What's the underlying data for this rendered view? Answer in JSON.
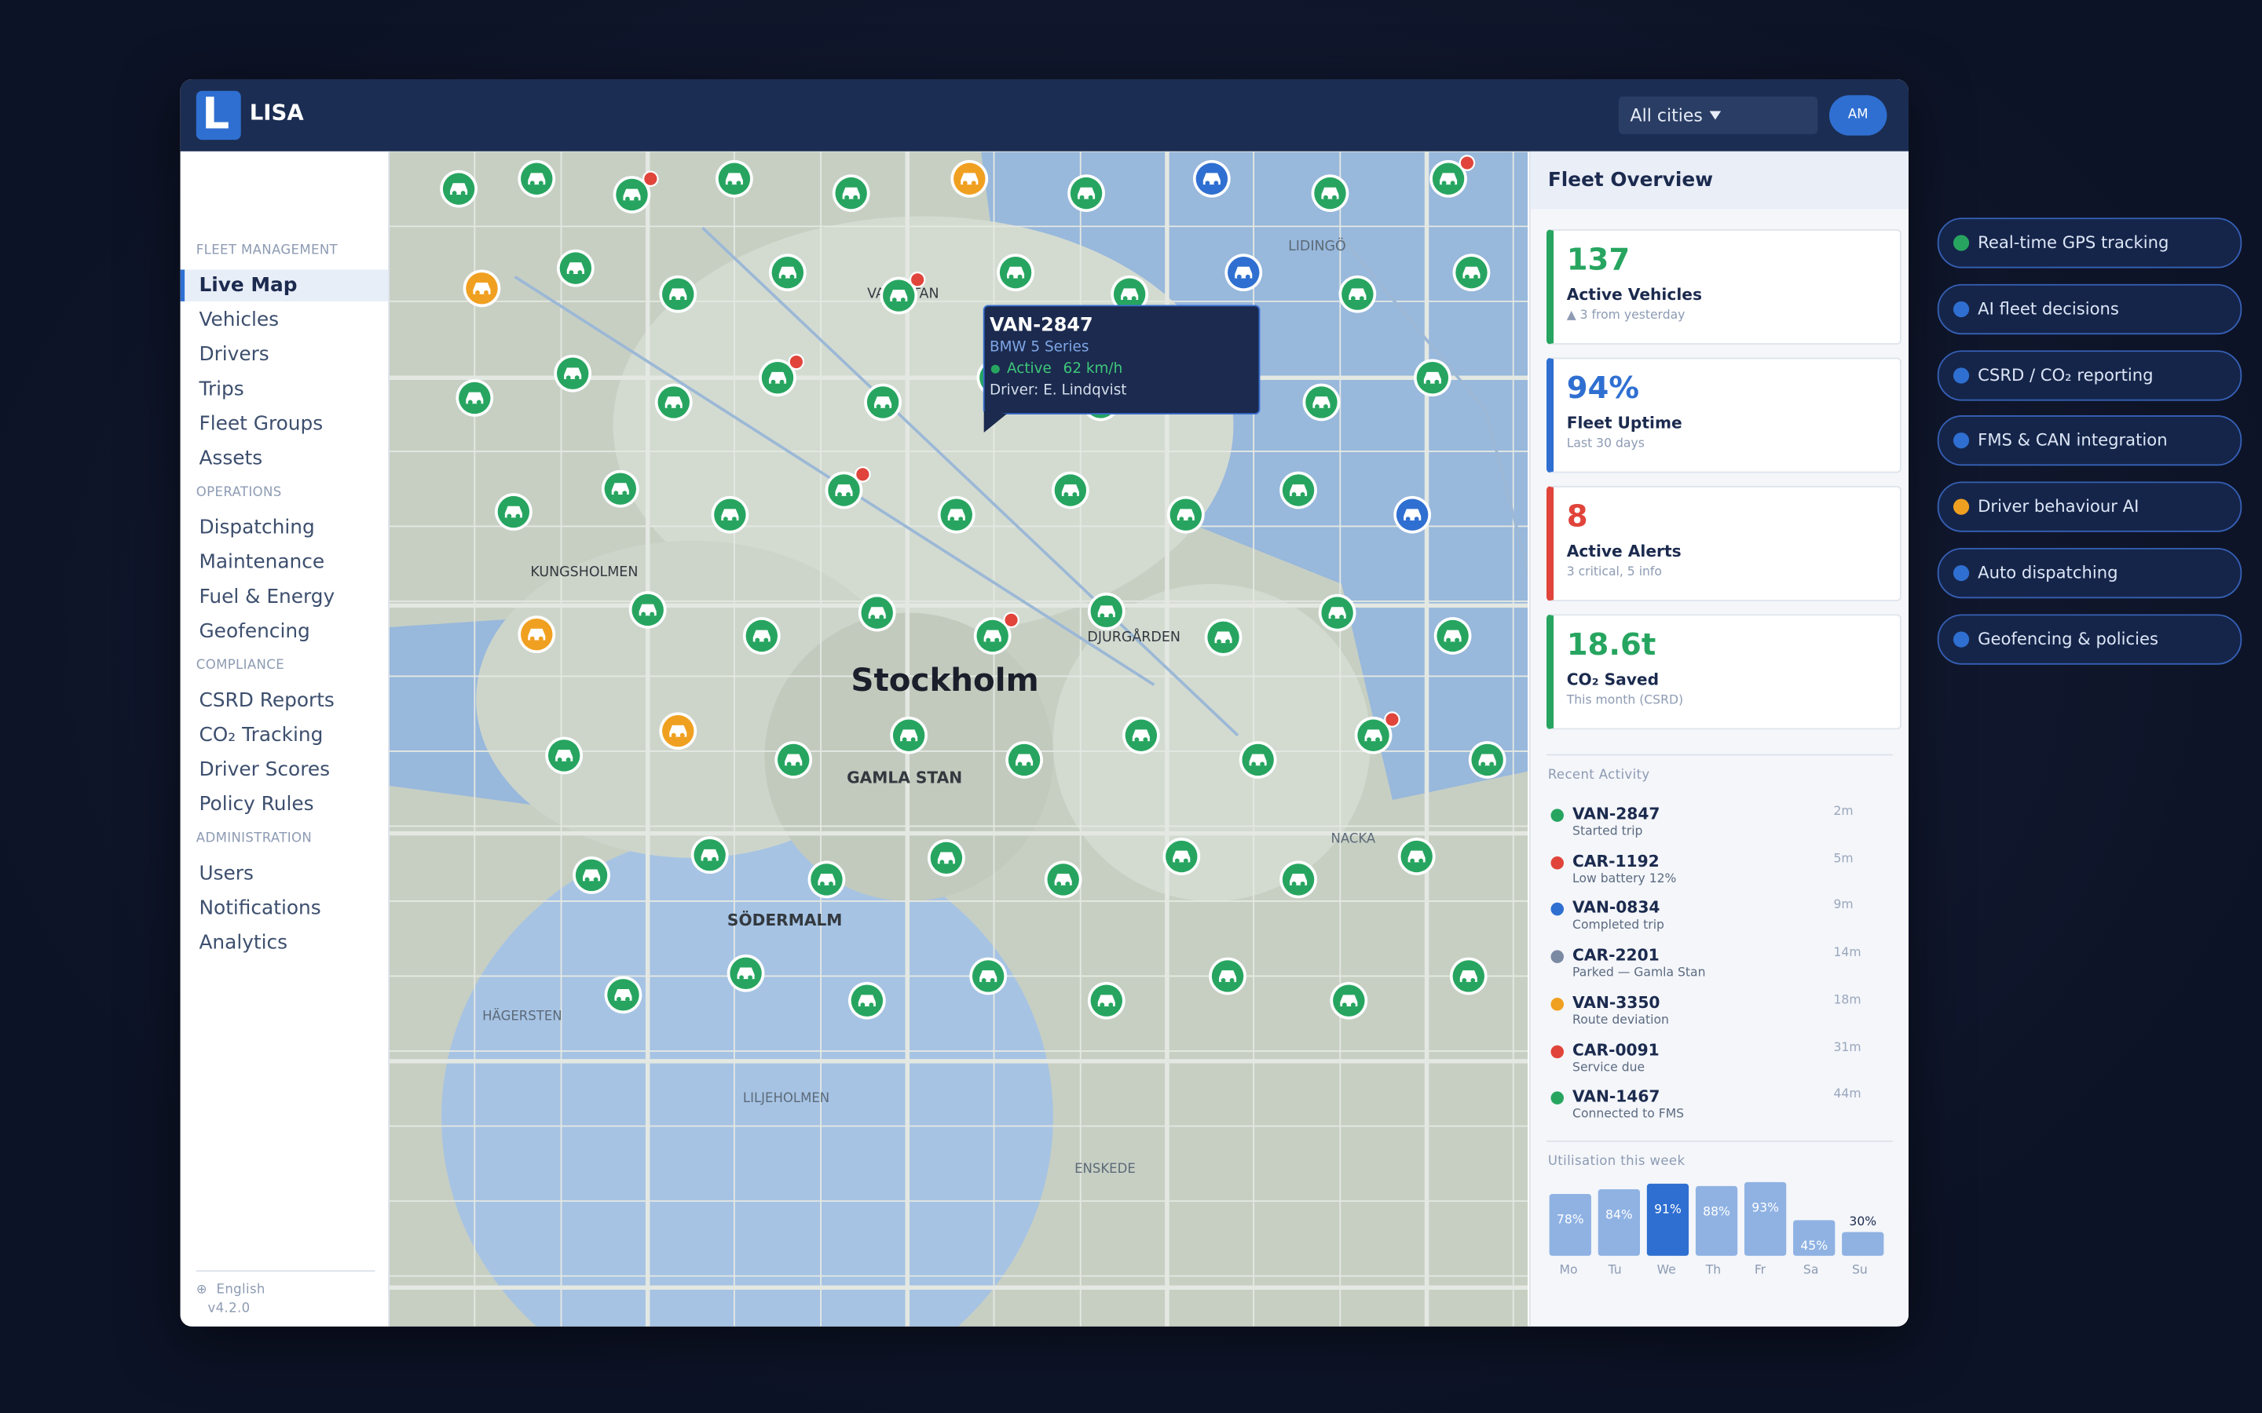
{
  "header": {
    "logo": "L",
    "title": "LISA",
    "city_select": "All cities",
    "avatar": "AM"
  },
  "sidebar": {
    "sections": [
      {
        "heading": "FLEET MANAGEMENT",
        "items": [
          "Live Map",
          "Vehicles",
          "Drivers",
          "Trips",
          "Fleet Groups",
          "Assets"
        ]
      },
      {
        "heading": "OPERATIONS",
        "items": [
          "Dispatching",
          "Maintenance",
          "Fuel & Energy",
          "Geofencing"
        ]
      },
      {
        "heading": "COMPLIANCE",
        "items": [
          "CSRD Reports",
          "CO₂ Tracking",
          "Driver Scores",
          "Policy Rules"
        ]
      },
      {
        "heading": "ADMINISTRATION",
        "items": [
          "Users",
          "Notifications",
          "Analytics"
        ]
      }
    ],
    "language": "English",
    "version": "v4.2.0"
  },
  "map": {
    "city": "Stockholm",
    "districts": [
      "GAMLA STAN",
      "SÖDERMALM",
      "KUNGSHOLMEN",
      "VASASTAN",
      "LIDINGÖ",
      "DJURGÅRDEN",
      "NACKA",
      "HÄGERSTEN",
      "LILJEHOLMEN",
      "ENSKEDE"
    ],
    "tooltip": {
      "vehicle": "VAN-2847",
      "model": "BMW 5 Series",
      "status": "Active",
      "speed": "62 km/h",
      "driver": "Driver: E. Lindqvist"
    }
  },
  "overview": {
    "title": "Fleet Overview",
    "cards": [
      {
        "value": "137",
        "label": "Active Vehicles",
        "note": "▲ 3 from yesterday",
        "color": "#27a560"
      },
      {
        "value": "94%",
        "label": "Fleet Uptime",
        "note": "Last 30 days",
        "color": "#2f6fd1"
      },
      {
        "value": "8",
        "label": "Active Alerts",
        "note": "3 critical, 5 info",
        "color": "#e0443a"
      },
      {
        "value": "18.6t",
        "label": "CO₂ Saved",
        "note": "This month (CSRD)",
        "color": "#27a560"
      }
    ],
    "activity_title": "Recent Activity",
    "activity": [
      {
        "id": "VAN-2847",
        "text": "Started trip",
        "time": "2m",
        "color": "#27a560"
      },
      {
        "id": "CAR-1192",
        "text": "Low battery 12%",
        "time": "5m",
        "color": "#e0443a"
      },
      {
        "id": "VAN-0834",
        "text": "Completed trip",
        "time": "9m",
        "color": "#2f6fd1"
      },
      {
        "id": "CAR-2201",
        "text": "Parked — Gamla Stan",
        "time": "14m",
        "color": "#7b8aa3"
      },
      {
        "id": "VAN-3350",
        "text": "Route deviation",
        "time": "18m",
        "color": "#f0a020"
      },
      {
        "id": "CAR-0091",
        "text": "Service due",
        "time": "31m",
        "color": "#e0443a"
      },
      {
        "id": "VAN-1467",
        "text": "Connected to FMS",
        "time": "44m",
        "color": "#27a560"
      }
    ],
    "utilisation": {
      "title": "Utilisation this week",
      "categories": [
        "Mo",
        "Tu",
        "We",
        "Th",
        "Fr",
        "Sa",
        "Su"
      ],
      "values": [
        78,
        84,
        91,
        88,
        93,
        45,
        30
      ],
      "value_labels": [
        "78%",
        "84%",
        "91%",
        "88%",
        "93%",
        "45%",
        "30%"
      ],
      "colors": [
        "#8fb2e3",
        "#8fb2e3",
        "#2f6fd1",
        "#8fb2e3",
        "#8fb2e3",
        "#8fb2e3",
        "#8fb2e3"
      ]
    }
  },
  "features": [
    {
      "label": "Real-time GPS tracking",
      "color": "#27a560"
    },
    {
      "label": "AI fleet decisions",
      "color": "#2f6fd1"
    },
    {
      "label": "CSRD / CO₂ reporting",
      "color": "#2f6fd1"
    },
    {
      "label": "FMS & CAN integration",
      "color": "#2f6fd1"
    },
    {
      "label": "Driver behaviour AI",
      "color": "#f0a020"
    },
    {
      "label": "Auto dispatching",
      "color": "#2f6fd1"
    },
    {
      "label": "Geofencing & policies",
      "color": "#2f6fd1"
    }
  ]
}
